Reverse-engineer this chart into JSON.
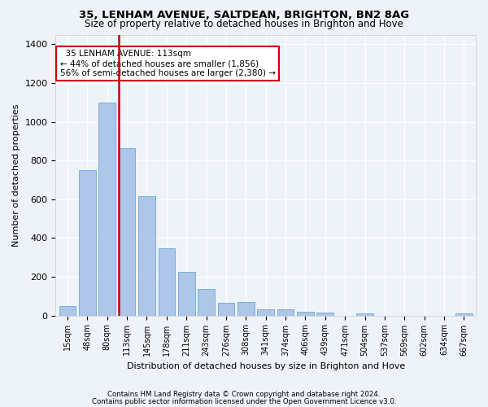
{
  "title1": "35, LENHAM AVENUE, SALTDEAN, BRIGHTON, BN2 8AG",
  "title2": "Size of property relative to detached houses in Brighton and Hove",
  "xlabel": "Distribution of detached houses by size in Brighton and Hove",
  "ylabel": "Number of detached properties",
  "footnote1": "Contains HM Land Registry data © Crown copyright and database right 2024.",
  "footnote2": "Contains public sector information licensed under the Open Government Licence v3.0.",
  "annotation_line1": "  35 LENHAM AVENUE: 113sqm",
  "annotation_line2": "← 44% of detached houses are smaller (1,856)",
  "annotation_line3": "56% of semi-detached houses are larger (2,380) →",
  "bar_labels": [
    "15sqm",
    "48sqm",
    "80sqm",
    "113sqm",
    "145sqm",
    "178sqm",
    "211sqm",
    "243sqm",
    "276sqm",
    "308sqm",
    "341sqm",
    "374sqm",
    "406sqm",
    "439sqm",
    "471sqm",
    "504sqm",
    "537sqm",
    "569sqm",
    "602sqm",
    "634sqm",
    "667sqm"
  ],
  "bar_heights": [
    50,
    750,
    1100,
    865,
    615,
    345,
    225,
    135,
    65,
    70,
    30,
    30,
    20,
    15,
    0,
    12,
    0,
    0,
    0,
    0,
    12
  ],
  "bar_color": "#aec6e8",
  "bar_edge_color": "#6aaad4",
  "vline_x_index": 3,
  "vline_color": "#cc0000",
  "background_color": "#eef2f9",
  "grid_color": "#ffffff",
  "ylim": [
    0,
    1450
  ],
  "yticks": [
    0,
    200,
    400,
    600,
    800,
    1000,
    1200,
    1400
  ]
}
